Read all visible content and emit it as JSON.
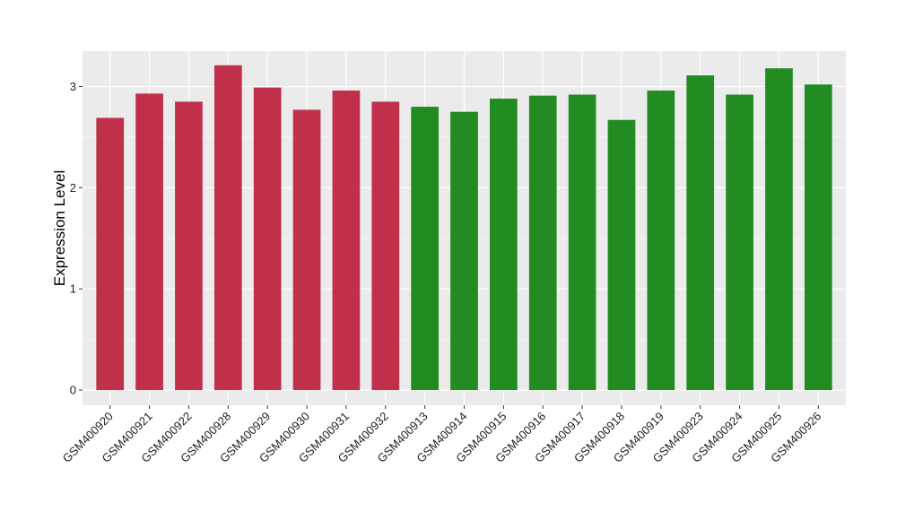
{
  "chart_data": {
    "type": "bar",
    "title": "",
    "xlabel": "",
    "ylabel": "Expression Level",
    "ylim": [
      -0.15,
      3.35
    ],
    "yticks": [
      0,
      1,
      2,
      3
    ],
    "grid": true,
    "legend": "none",
    "categories": [
      "GSM400920",
      "GSM400921",
      "GSM400922",
      "GSM400928",
      "GSM400929",
      "GSM400930",
      "GSM400931",
      "GSM400932",
      "GSM400913",
      "GSM400914",
      "GSM400915",
      "GSM400916",
      "GSM400917",
      "GSM400918",
      "GSM400919",
      "GSM400923",
      "GSM400924",
      "GSM400925",
      "GSM400926"
    ],
    "values": [
      2.69,
      2.93,
      2.85,
      3.21,
      2.99,
      2.77,
      2.96,
      2.85,
      2.8,
      2.75,
      2.88,
      2.91,
      2.92,
      2.67,
      2.96,
      3.11,
      2.92,
      3.18,
      3.02
    ],
    "group_colors": [
      "#C0304A",
      "#C0304A",
      "#C0304A",
      "#C0304A",
      "#C0304A",
      "#C0304A",
      "#C0304A",
      "#C0304A",
      "#228B22",
      "#228B22",
      "#228B22",
      "#228B22",
      "#228B22",
      "#228B22",
      "#228B22",
      "#228B22",
      "#228B22",
      "#228B22",
      "#228B22"
    ]
  }
}
